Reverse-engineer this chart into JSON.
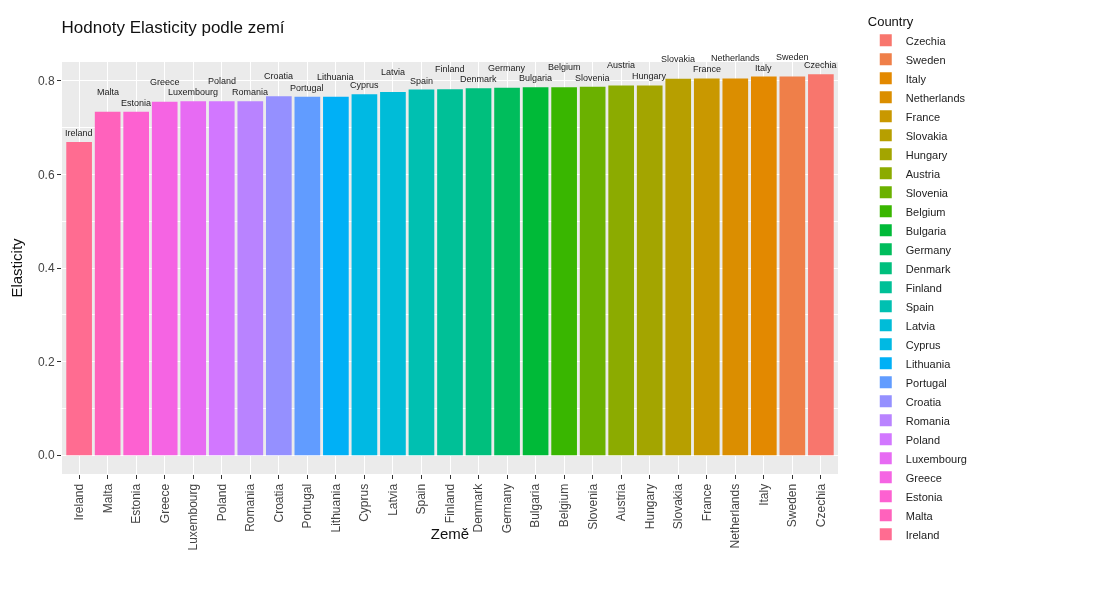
{
  "chart_data": {
    "type": "bar",
    "title": "Hodnoty Elasticity podle zemí",
    "xlabel": "Země",
    "ylabel": "Elasticity",
    "legend_title": "Country",
    "categories": [
      "Ireland",
      "Malta",
      "Estonia",
      "Greece",
      "Luxembourg",
      "Poland",
      "Romania",
      "Croatia",
      "Portugal",
      "Lithuania",
      "Cyprus",
      "Latvia",
      "Spain",
      "Finland",
      "Denmark",
      "Germany",
      "Bulgaria",
      "Belgium",
      "Slovenia",
      "Austria",
      "Hungary",
      "Slovakia",
      "France",
      "Netherlands",
      "Italy",
      "Sweden",
      "Czechia"
    ],
    "series": [
      {
        "name": "Ireland",
        "color": "#FF6C91",
        "values": [
          0.669,
          null,
          null,
          null,
          null,
          null,
          null,
          null,
          null,
          null,
          null,
          null,
          null,
          null,
          null,
          null,
          null,
          null,
          null,
          null,
          null,
          null,
          null,
          null,
          null,
          null,
          null
        ],
        "value_labels": [
          "Ireland",
          null,
          null,
          null,
          null,
          null,
          null,
          null,
          null,
          null,
          null,
          null,
          null,
          null,
          null,
          null,
          null,
          null,
          null,
          null,
          null,
          null,
          null,
          null,
          null,
          null,
          null
        ]
      },
      {
        "name": "Malta",
        "color": "#FF62BC",
        "values": [
          null,
          0.734,
          null,
          null,
          null,
          null,
          null,
          null,
          null,
          null,
          null,
          null,
          null,
          null,
          null,
          null,
          null,
          null,
          null,
          null,
          null,
          null,
          null,
          null,
          null,
          null,
          null
        ],
        "value_labels": [
          null,
          "Malta",
          null,
          null,
          null,
          null,
          null,
          null,
          null,
          null,
          null,
          null,
          null,
          null,
          null,
          null,
          null,
          null,
          null,
          null,
          null,
          null,
          null,
          null,
          null,
          null,
          null
        ]
      },
      {
        "name": "Estonia",
        "color": "#FD61D1",
        "values": [
          null,
          null,
          0.734,
          null,
          null,
          null,
          null,
          null,
          null,
          null,
          null,
          null,
          null,
          null,
          null,
          null,
          null,
          null,
          null,
          null,
          null,
          null,
          null,
          null,
          null,
          null,
          null
        ],
        "value_labels": [
          null,
          null,
          "Estonia",
          null,
          null,
          null,
          null,
          null,
          null,
          null,
          null,
          null,
          null,
          null,
          null,
          null,
          null,
          null,
          null,
          null,
          null,
          null,
          null,
          null,
          null,
          null,
          null
        ]
      },
      {
        "name": "Greece",
        "color": "#F564E3",
        "values": [
          null,
          null,
          null,
          0.755,
          null,
          null,
          null,
          null,
          null,
          null,
          null,
          null,
          null,
          null,
          null,
          null,
          null,
          null,
          null,
          null,
          null,
          null,
          null,
          null,
          null,
          null,
          null
        ],
        "value_labels": [
          null,
          null,
          null,
          "Greece",
          null,
          null,
          null,
          null,
          null,
          null,
          null,
          null,
          null,
          null,
          null,
          null,
          null,
          null,
          null,
          null,
          null,
          null,
          null,
          null,
          null,
          null,
          null
        ]
      },
      {
        "name": "Luxembourg",
        "color": "#E76BF3",
        "values": [
          null,
          null,
          null,
          null,
          0.756,
          null,
          null,
          null,
          null,
          null,
          null,
          null,
          null,
          null,
          null,
          null,
          null,
          null,
          null,
          null,
          null,
          null,
          null,
          null,
          null,
          null,
          null
        ],
        "value_labels": [
          null,
          null,
          null,
          null,
          "Luxembourg",
          null,
          null,
          null,
          null,
          null,
          null,
          null,
          null,
          null,
          null,
          null,
          null,
          null,
          null,
          null,
          null,
          null,
          null,
          null,
          null,
          null,
          null
        ]
      },
      {
        "name": "Poland",
        "color": "#D277FF",
        "values": [
          null,
          null,
          null,
          null,
          null,
          0.756,
          null,
          null,
          null,
          null,
          null,
          null,
          null,
          null,
          null,
          null,
          null,
          null,
          null,
          null,
          null,
          null,
          null,
          null,
          null,
          null,
          null
        ],
        "value_labels": [
          null,
          null,
          null,
          null,
          null,
          "Poland",
          null,
          null,
          null,
          null,
          null,
          null,
          null,
          null,
          null,
          null,
          null,
          null,
          null,
          null,
          null,
          null,
          null,
          null,
          null,
          null,
          null
        ]
      },
      {
        "name": "Romania",
        "color": "#B983FF",
        "values": [
          null,
          null,
          null,
          null,
          null,
          null,
          0.756,
          null,
          null,
          null,
          null,
          null,
          null,
          null,
          null,
          null,
          null,
          null,
          null,
          null,
          null,
          null,
          null,
          null,
          null,
          null,
          null
        ],
        "value_labels": [
          null,
          null,
          null,
          null,
          null,
          null,
          "Romania",
          null,
          null,
          null,
          null,
          null,
          null,
          null,
          null,
          null,
          null,
          null,
          null,
          null,
          null,
          null,
          null,
          null,
          null,
          null,
          null
        ]
      },
      {
        "name": "Croatia",
        "color": "#9590FF",
        "values": [
          null,
          null,
          null,
          null,
          null,
          null,
          null,
          0.767,
          null,
          null,
          null,
          null,
          null,
          null,
          null,
          null,
          null,
          null,
          null,
          null,
          null,
          null,
          null,
          null,
          null,
          null,
          null
        ],
        "value_labels": [
          null,
          null,
          null,
          null,
          null,
          null,
          null,
          "Croatia",
          null,
          null,
          null,
          null,
          null,
          null,
          null,
          null,
          null,
          null,
          null,
          null,
          null,
          null,
          null,
          null,
          null,
          null,
          null
        ]
      },
      {
        "name": "Portugal",
        "color": "#619CFF",
        "values": [
          null,
          null,
          null,
          null,
          null,
          null,
          null,
          null,
          0.766,
          null,
          null,
          null,
          null,
          null,
          null,
          null,
          null,
          null,
          null,
          null,
          null,
          null,
          null,
          null,
          null,
          null,
          null
        ],
        "value_labels": [
          null,
          null,
          null,
          null,
          null,
          null,
          null,
          null,
          "Portugal",
          null,
          null,
          null,
          null,
          null,
          null,
          null,
          null,
          null,
          null,
          null,
          null,
          null,
          null,
          null,
          null,
          null,
          null
        ]
      },
      {
        "name": "Lithuania",
        "color": "#00B0F6",
        "values": [
          null,
          null,
          null,
          null,
          null,
          null,
          null,
          null,
          null,
          0.766,
          null,
          null,
          null,
          null,
          null,
          null,
          null,
          null,
          null,
          null,
          null,
          null,
          null,
          null,
          null,
          null,
          null
        ],
        "value_labels": [
          null,
          null,
          null,
          null,
          null,
          null,
          null,
          null,
          null,
          "Lithuania",
          null,
          null,
          null,
          null,
          null,
          null,
          null,
          null,
          null,
          null,
          null,
          null,
          null,
          null,
          null,
          null,
          null
        ]
      },
      {
        "name": "Cyprus",
        "color": "#00B9E3",
        "values": [
          null,
          null,
          null,
          null,
          null,
          null,
          null,
          null,
          null,
          null,
          0.771,
          null,
          null,
          null,
          null,
          null,
          null,
          null,
          null,
          null,
          null,
          null,
          null,
          null,
          null,
          null,
          null
        ],
        "value_labels": [
          null,
          null,
          null,
          null,
          null,
          null,
          null,
          null,
          null,
          null,
          "Cyprus",
          null,
          null,
          null,
          null,
          null,
          null,
          null,
          null,
          null,
          null,
          null,
          null,
          null,
          null,
          null,
          null
        ]
      },
      {
        "name": "Latvia",
        "color": "#00BCD8",
        "values": [
          null,
          null,
          null,
          null,
          null,
          null,
          null,
          null,
          null,
          null,
          null,
          0.776,
          null,
          null,
          null,
          null,
          null,
          null,
          null,
          null,
          null,
          null,
          null,
          null,
          null,
          null,
          null
        ],
        "value_labels": [
          null,
          null,
          null,
          null,
          null,
          null,
          null,
          null,
          null,
          null,
          null,
          "Latvia",
          null,
          null,
          null,
          null,
          null,
          null,
          null,
          null,
          null,
          null,
          null,
          null,
          null,
          null,
          null
        ]
      },
      {
        "name": "Spain",
        "color": "#00C0B1",
        "values": [
          null,
          null,
          null,
          null,
          null,
          null,
          null,
          null,
          null,
          null,
          null,
          null,
          0.781,
          null,
          null,
          null,
          null,
          null,
          null,
          null,
          null,
          null,
          null,
          null,
          null,
          null,
          null
        ],
        "value_labels": [
          null,
          null,
          null,
          null,
          null,
          null,
          null,
          null,
          null,
          null,
          null,
          null,
          "Spain",
          null,
          null,
          null,
          null,
          null,
          null,
          null,
          null,
          null,
          null,
          null,
          null,
          null,
          null
        ]
      },
      {
        "name": "Finland",
        "color": "#00C097",
        "values": [
          null,
          null,
          null,
          null,
          null,
          null,
          null,
          null,
          null,
          null,
          null,
          null,
          null,
          0.782,
          null,
          null,
          null,
          null,
          null,
          null,
          null,
          null,
          null,
          null,
          null,
          null,
          null
        ],
        "value_labels": [
          null,
          null,
          null,
          null,
          null,
          null,
          null,
          null,
          null,
          null,
          null,
          null,
          null,
          "Finland",
          null,
          null,
          null,
          null,
          null,
          null,
          null,
          null,
          null,
          null,
          null,
          null,
          null
        ]
      },
      {
        "name": "Denmark",
        "color": "#00BF7D",
        "values": [
          null,
          null,
          null,
          null,
          null,
          null,
          null,
          null,
          null,
          null,
          null,
          null,
          null,
          null,
          0.784,
          null,
          null,
          null,
          null,
          null,
          null,
          null,
          null,
          null,
          null,
          null,
          null
        ],
        "value_labels": [
          null,
          null,
          null,
          null,
          null,
          null,
          null,
          null,
          null,
          null,
          null,
          null,
          null,
          null,
          "Denmark",
          null,
          null,
          null,
          null,
          null,
          null,
          null,
          null,
          null,
          null,
          null,
          null
        ]
      },
      {
        "name": "Germany",
        "color": "#00BD5C",
        "values": [
          null,
          null,
          null,
          null,
          null,
          null,
          null,
          null,
          null,
          null,
          null,
          null,
          null,
          null,
          null,
          0.785,
          null,
          null,
          null,
          null,
          null,
          null,
          null,
          null,
          null,
          null,
          null
        ],
        "value_labels": [
          null,
          null,
          null,
          null,
          null,
          null,
          null,
          null,
          null,
          null,
          null,
          null,
          null,
          null,
          null,
          "Germany",
          null,
          null,
          null,
          null,
          null,
          null,
          null,
          null,
          null,
          null,
          null
        ]
      },
      {
        "name": "Bulgaria",
        "color": "#00BA38",
        "values": [
          null,
          null,
          null,
          null,
          null,
          null,
          null,
          null,
          null,
          null,
          null,
          null,
          null,
          null,
          null,
          null,
          0.786,
          null,
          null,
          null,
          null,
          null,
          null,
          null,
          null,
          null,
          null
        ],
        "value_labels": [
          null,
          null,
          null,
          null,
          null,
          null,
          null,
          null,
          null,
          null,
          null,
          null,
          null,
          null,
          null,
          null,
          "Bulgaria",
          null,
          null,
          null,
          null,
          null,
          null,
          null,
          null,
          null,
          null
        ]
      },
      {
        "name": "Belgium",
        "color": "#39B600",
        "values": [
          null,
          null,
          null,
          null,
          null,
          null,
          null,
          null,
          null,
          null,
          null,
          null,
          null,
          null,
          null,
          null,
          null,
          0.786,
          null,
          null,
          null,
          null,
          null,
          null,
          null,
          null,
          null
        ],
        "value_labels": [
          null,
          null,
          null,
          null,
          null,
          null,
          null,
          null,
          null,
          null,
          null,
          null,
          null,
          null,
          null,
          null,
          null,
          "Belgium",
          null,
          null,
          null,
          null,
          null,
          null,
          null,
          null,
          null
        ]
      },
      {
        "name": "Slovenia",
        "color": "#6BB100",
        "values": [
          null,
          null,
          null,
          null,
          null,
          null,
          null,
          null,
          null,
          null,
          null,
          null,
          null,
          null,
          null,
          null,
          null,
          null,
          0.787,
          null,
          null,
          null,
          null,
          null,
          null,
          null,
          null
        ],
        "value_labels": [
          null,
          null,
          null,
          null,
          null,
          null,
          null,
          null,
          null,
          null,
          null,
          null,
          null,
          null,
          null,
          null,
          null,
          null,
          "Slovenia",
          null,
          null,
          null,
          null,
          null,
          null,
          null,
          null
        ]
      },
      {
        "name": "Austria",
        "color": "#8CAB00",
        "values": [
          null,
          null,
          null,
          null,
          null,
          null,
          null,
          null,
          null,
          null,
          null,
          null,
          null,
          null,
          null,
          null,
          null,
          null,
          null,
          0.79,
          null,
          null,
          null,
          null,
          null,
          null,
          null
        ],
        "value_labels": [
          null,
          null,
          null,
          null,
          null,
          null,
          null,
          null,
          null,
          null,
          null,
          null,
          null,
          null,
          null,
          null,
          null,
          null,
          null,
          "Austria",
          null,
          null,
          null,
          null,
          null,
          null,
          null
        ]
      },
      {
        "name": "Hungary",
        "color": "#A3A500",
        "values": [
          null,
          null,
          null,
          null,
          null,
          null,
          null,
          null,
          null,
          null,
          null,
          null,
          null,
          null,
          null,
          null,
          null,
          null,
          null,
          null,
          0.79,
          null,
          null,
          null,
          null,
          null,
          null
        ],
        "value_labels": [
          null,
          null,
          null,
          null,
          null,
          null,
          null,
          null,
          null,
          null,
          null,
          null,
          null,
          null,
          null,
          null,
          null,
          null,
          null,
          null,
          "Hungary",
          null,
          null,
          null,
          null,
          null,
          null
        ]
      },
      {
        "name": "Slovakia",
        "color": "#B79F00",
        "values": [
          null,
          null,
          null,
          null,
          null,
          null,
          null,
          null,
          null,
          null,
          null,
          null,
          null,
          null,
          null,
          null,
          null,
          null,
          null,
          null,
          null,
          0.804,
          null,
          null,
          null,
          null,
          null
        ],
        "value_labels": [
          null,
          null,
          null,
          null,
          null,
          null,
          null,
          null,
          null,
          null,
          null,
          null,
          null,
          null,
          null,
          null,
          null,
          null,
          null,
          null,
          null,
          "Slovakia",
          null,
          null,
          null,
          null,
          null
        ]
      },
      {
        "name": "France",
        "color": "#C99800",
        "values": [
          null,
          null,
          null,
          null,
          null,
          null,
          null,
          null,
          null,
          null,
          null,
          null,
          null,
          null,
          null,
          null,
          null,
          null,
          null,
          null,
          null,
          null,
          0.805,
          null,
          null,
          null,
          null
        ],
        "value_labels": [
          null,
          null,
          null,
          null,
          null,
          null,
          null,
          null,
          null,
          null,
          null,
          null,
          null,
          null,
          null,
          null,
          null,
          null,
          null,
          null,
          null,
          null,
          "France",
          null,
          null,
          null,
          null
        ]
      },
      {
        "name": "Netherlands",
        "color": "#DB8E00",
        "values": [
          null,
          null,
          null,
          null,
          null,
          null,
          null,
          null,
          null,
          null,
          null,
          null,
          null,
          null,
          null,
          null,
          null,
          null,
          null,
          null,
          null,
          null,
          null,
          0.805,
          null,
          null,
          null
        ],
        "value_labels": [
          null,
          null,
          null,
          null,
          null,
          null,
          null,
          null,
          null,
          null,
          null,
          null,
          null,
          null,
          null,
          null,
          null,
          null,
          null,
          null,
          null,
          null,
          null,
          "Netherlands",
          null,
          null,
          null
        ]
      },
      {
        "name": "Italy",
        "color": "#E38900",
        "values": [
          null,
          null,
          null,
          null,
          null,
          null,
          null,
          null,
          null,
          null,
          null,
          null,
          null,
          null,
          null,
          null,
          null,
          null,
          null,
          null,
          null,
          null,
          null,
          null,
          0.809,
          null,
          null
        ],
        "value_labels": [
          null,
          null,
          null,
          null,
          null,
          null,
          null,
          null,
          null,
          null,
          null,
          null,
          null,
          null,
          null,
          null,
          null,
          null,
          null,
          null,
          null,
          null,
          null,
          null,
          "Italy",
          null,
          null
        ]
      },
      {
        "name": "Sweden",
        "color": "#EF7F49",
        "values": [
          null,
          null,
          null,
          null,
          null,
          null,
          null,
          null,
          null,
          null,
          null,
          null,
          null,
          null,
          null,
          null,
          null,
          null,
          null,
          null,
          null,
          null,
          null,
          null,
          null,
          0.809,
          null
        ],
        "value_labels": [
          null,
          null,
          null,
          null,
          null,
          null,
          null,
          null,
          null,
          null,
          null,
          null,
          null,
          null,
          null,
          null,
          null,
          null,
          null,
          null,
          null,
          null,
          null,
          null,
          null,
          "Sweden",
          null
        ]
      },
      {
        "name": "Czechia",
        "color": "#F8766D",
        "values": [
          null,
          null,
          null,
          null,
          null,
          null,
          null,
          null,
          null,
          null,
          null,
          null,
          null,
          null,
          null,
          null,
          null,
          null,
          null,
          null,
          null,
          null,
          null,
          null,
          null,
          null,
          0.814
        ],
        "value_labels": [
          null,
          null,
          null,
          null,
          null,
          null,
          null,
          null,
          null,
          null,
          null,
          null,
          null,
          null,
          null,
          null,
          null,
          null,
          null,
          null,
          null,
          null,
          null,
          null,
          null,
          null,
          "Czechia"
        ]
      }
    ],
    "ylim": [
      -0.04,
      0.84
    ],
    "yticks": [
      {
        "value": 0,
        "label": "0.0"
      },
      0.2,
      0.4,
      0.6,
      0.8
    ],
    "grid": true,
    "legend": "right"
  }
}
